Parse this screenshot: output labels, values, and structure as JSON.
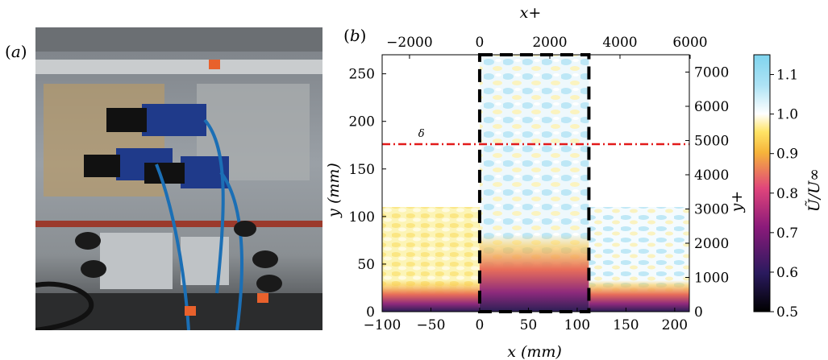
{
  "panels": {
    "a": {
      "label": "a"
    },
    "b": {
      "label": "b"
    }
  },
  "photo": {
    "description_icon": "camera-rig-photo"
  },
  "chart_data": {
    "type": "heatmap",
    "xlabel": "x (mm)",
    "ylabel": "y (mm)",
    "x_top_label": "x+",
    "y_right_label": "y+",
    "colorbar_label": "Ũ/U∞",
    "xlim": [
      -100,
      215
    ],
    "ylim": [
      0,
      270
    ],
    "x_ticks": [
      -100,
      -50,
      0,
      50,
      100,
      150,
      200
    ],
    "y_ticks": [
      0,
      50,
      100,
      150,
      200,
      250
    ],
    "x_top_ticks": [
      -2000,
      0,
      2000,
      4000,
      6000
    ],
    "y_right_ticks": [
      0,
      1000,
      2000,
      3000,
      4000,
      5000,
      6000,
      7000
    ],
    "x_plus_per_mm": 27.8,
    "y_plus_per_mm": 27.8,
    "colorbar": {
      "min": 0.5,
      "max": 1.15,
      "ticks": [
        0.5,
        0.6,
        0.7,
        0.8,
        0.9,
        1.0,
        1.1
      ]
    },
    "delta_line": {
      "y": 176,
      "label": "δ",
      "color": "#e21a1a"
    },
    "dashed_box": {
      "x0": 0,
      "x1": 112,
      "y0": 0,
      "y1": 270
    },
    "field_regions": [
      {
        "name": "left-fov",
        "x": [
          -100,
          0
        ],
        "y": [
          0,
          110
        ]
      },
      {
        "name": "center-fov",
        "x": [
          0,
          112
        ],
        "y": [
          0,
          270
        ]
      },
      {
        "name": "right-fov",
        "x": [
          112,
          215
        ],
        "y": [
          0,
          110
        ]
      }
    ]
  }
}
